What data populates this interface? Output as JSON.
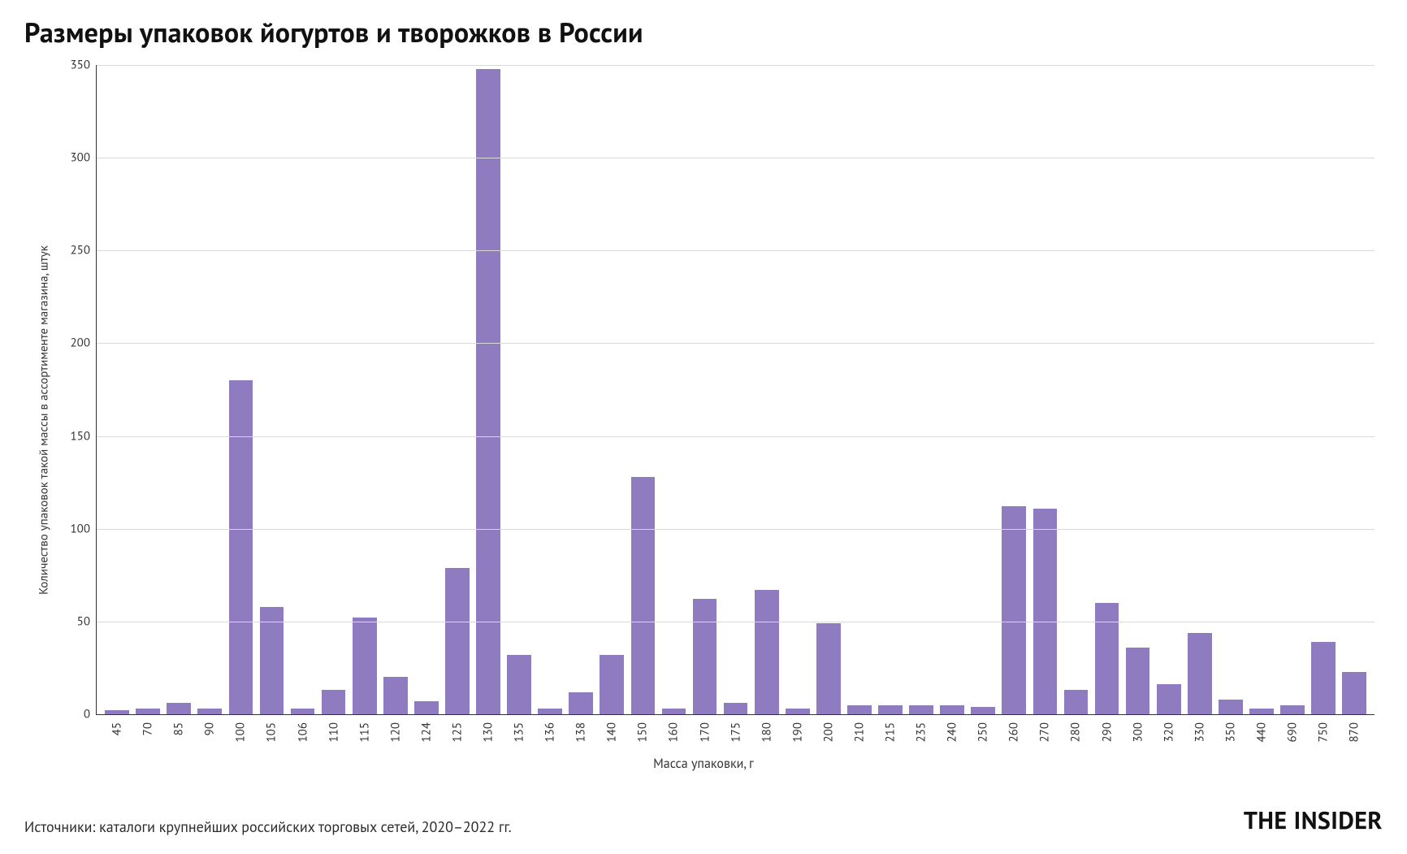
{
  "title": "Размеры упаковок йогуртов и творожков в России",
  "source": "Источники: каталоги крупнейших российских торговых сетей, 2020–2022 гг.",
  "brand": "THE INSIDER",
  "chart": {
    "type": "bar",
    "xlabel": "Масса упаковки, г",
    "ylabel": "Количество упаковок такой массы в ассортименте магазина, штук",
    "ylim": [
      0,
      350
    ],
    "ytick_step": 50,
    "bar_color": "#8f7bbf",
    "axis_color": "#333333",
    "grid_color": "#d9d9d9",
    "background_color": "#ffffff",
    "title_fontsize": 34,
    "label_fontsize": 15,
    "tick_fontsize": 15,
    "bar_width": 0.78,
    "categories": [
      "45",
      "70",
      "85",
      "90",
      "100",
      "105",
      "106",
      "110",
      "115",
      "120",
      "124",
      "125",
      "130",
      "135",
      "136",
      "138",
      "140",
      "150",
      "160",
      "170",
      "175",
      "180",
      "190",
      "200",
      "210",
      "215",
      "235",
      "240",
      "250",
      "260",
      "270",
      "280",
      "290",
      "300",
      "320",
      "330",
      "350",
      "440",
      "690",
      "750",
      "870"
    ],
    "values": [
      2,
      3,
      6,
      3,
      180,
      58,
      3,
      13,
      52,
      20,
      7,
      79,
      348,
      32,
      3,
      12,
      32,
      128,
      3,
      62,
      6,
      67,
      3,
      49,
      5,
      5,
      5,
      5,
      4,
      112,
      111,
      13,
      60,
      36,
      16,
      44,
      8,
      3,
      5,
      39,
      23
    ]
  }
}
